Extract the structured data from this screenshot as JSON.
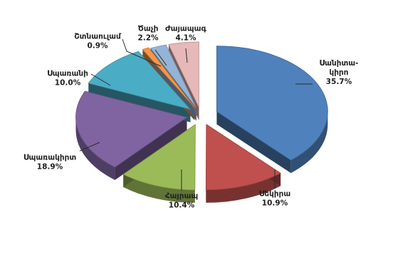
{
  "chart_data": {
    "type": "pie",
    "title": "",
    "slices": [
      {
        "label_lines": [
          "Սանիտա-",
          "կիրո"
        ],
        "pct_text": "35.7%",
        "value": 35.7,
        "color": "#4f81bd"
      },
      {
        "label_lines": [
          "Սեկիրա"
        ],
        "pct_text": "10.9%",
        "value": 10.9,
        "color": "#c0504d"
      },
      {
        "label_lines": [
          "Հայրապ"
        ],
        "pct_text": "10.4%",
        "value": 10.4,
        "color": "#9bbb59"
      },
      {
        "label_lines": [
          "Սպառակիրտ"
        ],
        "pct_text": "18.9%",
        "value": 18.9,
        "color": "#8064a2"
      },
      {
        "label_lines": [
          "Սպառանի"
        ],
        "pct_text": "10.0%",
        "value": 10.0,
        "color": "#4bacc6"
      },
      {
        "label_lines": [
          "Շտնաուլամ"
        ],
        "pct_text": "0.9%",
        "value": 0.9,
        "color": "#f79646"
      },
      {
        "label_lines": [
          "Ծաչի"
        ],
        "pct_text": "2.2%",
        "value": 2.2,
        "color": "#95b3d7"
      },
      {
        "label_lines": [
          "Ժայապագ"
        ],
        "pct_text": "4.1%",
        "value": 4.1,
        "color": "#e6b8b7"
      }
    ]
  }
}
